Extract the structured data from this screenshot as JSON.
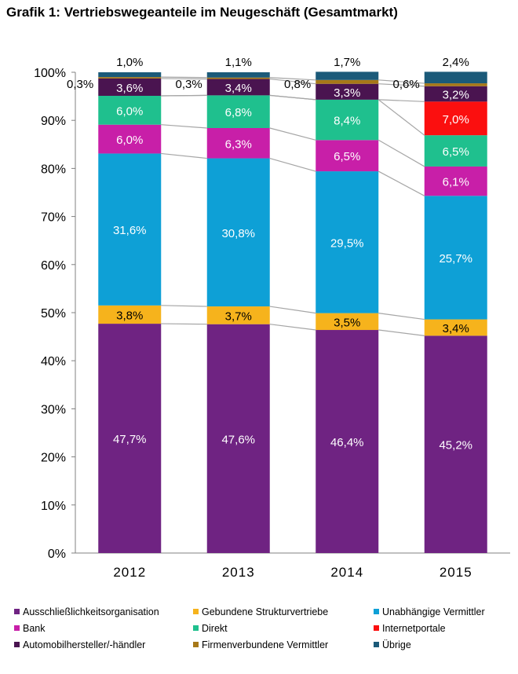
{
  "title": "Grafik 1: Vertriebswegeanteile im Neugeschäft (Gesamtmarkt)",
  "chart_data": {
    "type": "bar",
    "stacked": true,
    "categories": [
      "2012",
      "2013",
      "2014",
      "2015"
    ],
    "ylim": [
      0,
      100
    ],
    "yticks": [
      "0%",
      "10%",
      "20%",
      "30%",
      "40%",
      "50%",
      "60%",
      "70%",
      "80%",
      "90%",
      "100%"
    ],
    "series": [
      {
        "name": "Ausschließlichkeitsorganisation",
        "color": "#6f2382",
        "values": [
          47.7,
          47.6,
          46.4,
          45.2
        ],
        "labels": [
          "47,7%",
          "47,6%",
          "46,4%",
          "45,2%"
        ],
        "label_color": "#ffffff"
      },
      {
        "name": "Gebundene Strukturvertriebe",
        "color": "#f6b31c",
        "values": [
          3.8,
          3.7,
          3.5,
          3.4
        ],
        "labels": [
          "3,8%",
          "3,7%",
          "3,5%",
          "3,4%"
        ],
        "label_color": "#000000"
      },
      {
        "name": "Unabhängige Vermittler",
        "color": "#0ea0d6",
        "values": [
          31.6,
          30.8,
          29.5,
          25.7
        ],
        "labels": [
          "31,6%",
          "30,8%",
          "29,5%",
          "25,7%"
        ],
        "label_color": "#ffffff"
      },
      {
        "name": "Bank",
        "color": "#c81fa8",
        "values": [
          6.0,
          6.3,
          6.5,
          6.1
        ],
        "labels": [
          "6,0%",
          "6,3%",
          "6,5%",
          "6,1%"
        ],
        "label_color": "#ffffff"
      },
      {
        "name": "Direkt",
        "color": "#1fc08e",
        "values": [
          6.0,
          6.8,
          8.4,
          6.5
        ],
        "labels": [
          "6,0%",
          "6,8%",
          "8,4%",
          "6,5%"
        ],
        "label_color": "#ffffff"
      },
      {
        "name": "Internetportale",
        "color": "#fb0f0f",
        "values": [
          0,
          0,
          0,
          7.0
        ],
        "labels": [
          "",
          "",
          "",
          "7,0%"
        ],
        "label_color": "#ffffff"
      },
      {
        "name": "Automobilhersteller/-händler",
        "color": "#4a1450",
        "values": [
          3.6,
          3.4,
          3.3,
          3.2
        ],
        "labels": [
          "3,6%",
          "3,4%",
          "3,3%",
          "3,2%"
        ],
        "label_color": "#ffffff"
      },
      {
        "name": "Firmenverbundene Vermittler",
        "color": "#a77818",
        "values": [
          0.3,
          0.3,
          0.8,
          0.6
        ],
        "labels": [
          "0,3%",
          "0,3%",
          "0,8%",
          "0,6%"
        ],
        "label_color": "#000000",
        "label_outside": true
      },
      {
        "name": "Übrige",
        "color": "#1b5a79",
        "values": [
          1.0,
          1.1,
          1.7,
          2.4
        ],
        "labels": [
          "1,0%",
          "1,1%",
          "1,7%",
          "2,4%"
        ],
        "label_color": "#000000",
        "label_above": true
      }
    ],
    "legend_position": "bottom",
    "connector_lines": true,
    "grid": false
  }
}
